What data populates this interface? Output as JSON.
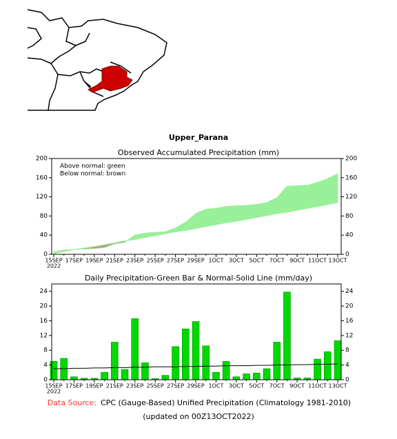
{
  "title": "Upper_Parana",
  "chart_data": [
    {
      "type": "area",
      "title": "Observed Accumulated Precipitation (mm)",
      "annotations": [
        "Above normal: green",
        "Below normal: brown"
      ],
      "x_annotation": "2022",
      "categories": [
        "15SEP",
        null,
        "17SEP",
        null,
        "19SEP",
        null,
        "21SEP",
        null,
        "23SEP",
        null,
        "25SEP",
        null,
        "27SEP",
        null,
        "29SEP",
        null,
        "1OCT",
        null,
        "3OCT",
        null,
        "5OCT",
        null,
        "7OCT",
        null,
        "9OCT",
        null,
        "11OCT",
        null,
        "13OCT"
      ],
      "series": [
        {
          "color": "#98f098",
          "values": [
            5,
            9,
            10,
            11,
            12,
            14,
            22,
            25,
            40,
            44,
            46,
            47,
            55,
            67,
            85,
            94,
            96,
            100,
            101,
            102,
            104,
            108,
            118,
            142,
            143,
            144,
            150,
            158,
            168
          ]
        },
        {
          "color": "#98f098",
          "values": [
            2,
            6,
            10,
            13,
            16,
            20,
            24,
            28,
            31,
            35,
            39,
            43,
            47,
            50,
            54,
            58,
            62,
            66,
            69,
            73,
            77,
            81,
            85,
            88,
            92,
            96,
            100,
            104,
            108
          ]
        }
      ],
      "above_color": "#98f098",
      "below_color": "#b8998a",
      "ylim": [
        0,
        200
      ],
      "yticks": [
        0,
        40,
        80,
        120,
        160,
        200
      ]
    },
    {
      "type": "bar",
      "title": "Daily Precipitation-Green Bar & Normal-Solid Line (mm/day)",
      "x_annotation": "2022",
      "categories": [
        "15SEP",
        null,
        "17SEP",
        null,
        "19SEP",
        null,
        "21SEP",
        null,
        "23SEP",
        null,
        "25SEP",
        null,
        "27SEP",
        null,
        "29SEP",
        null,
        "1OCT",
        null,
        "3OCT",
        null,
        "5OCT",
        null,
        "7OCT",
        null,
        "9OCT",
        null,
        "11OCT",
        null,
        "13OCT"
      ],
      "series": [
        {
          "color": "#00d800",
          "values": [
            5,
            5.8,
            0.8,
            0.4,
            0.4,
            2,
            10.2,
            2.8,
            16.6,
            4.6,
            0.3,
            1.2,
            9,
            13.8,
            15.8,
            9.2,
            2,
            5,
            0.8,
            1.6,
            1.8,
            3,
            10.2,
            23.8,
            0.5,
            0.5,
            5.6,
            7.6,
            10.6
          ]
        },
        {
          "color": "#000000",
          "values": [
            3.0,
            3.0,
            3.1,
            3.1,
            3.2,
            3.2,
            3.3,
            3.3,
            3.4,
            3.4,
            3.5,
            3.5,
            3.5,
            3.6,
            3.6,
            3.7,
            3.7,
            3.8,
            3.8,
            3.8,
            3.9,
            3.9,
            4.0,
            4.0,
            4.1,
            4.1,
            4.2,
            4.2,
            4.3
          ]
        }
      ],
      "ylim": [
        0,
        26
      ],
      "yticks": [
        0,
        4,
        8,
        12,
        16,
        20,
        24
      ]
    }
  ],
  "footer": {
    "source_label": "Data Source:",
    "source": "CPC (Gauge-Based) Unified Precipitation (Climatology 1981-2010)",
    "updated": "(updated on 00Z13OCT2022)"
  }
}
